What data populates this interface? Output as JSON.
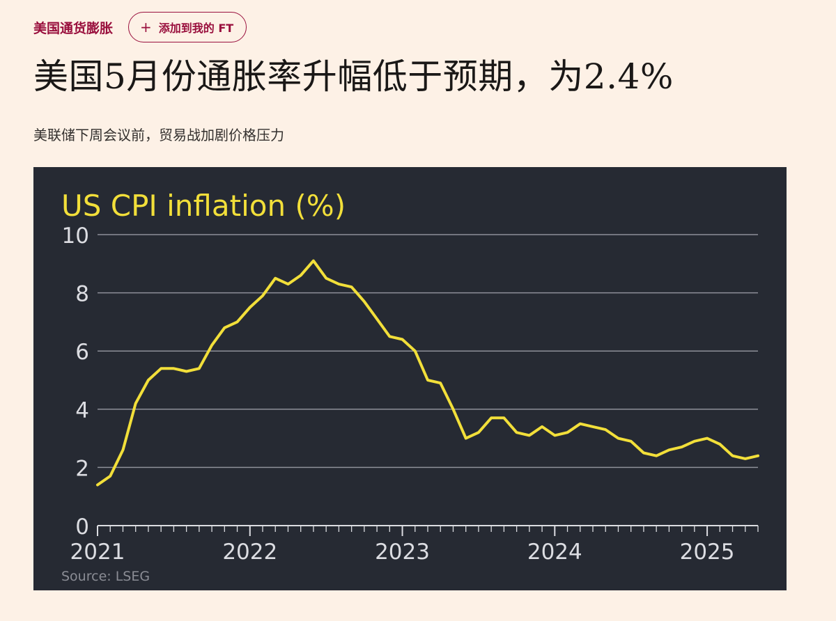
{
  "topic": {
    "label": "美国通货膨胀",
    "follow_label": "添加到我的 FT",
    "follow_icon": "plus-icon"
  },
  "headline": "美国5月份通胀率升幅低于预期，为2.4%",
  "standfirst": "美联储下周会议前，贸易战加剧价格压力",
  "colors": {
    "background": "#fdf1e6",
    "brand": "#990f3d",
    "chart_bg": "#262a33",
    "series": "#f2df3a",
    "gridline": "#8e9099",
    "axis_text": "#dcdde2",
    "source_text": "#8b8d95"
  },
  "chart_data": {
    "type": "line",
    "title": "US CPI inflation (%)",
    "xlabel": "",
    "ylabel": "",
    "xlim": [
      "2021-01",
      "2025-05"
    ],
    "ylim": [
      0,
      10
    ],
    "yticks": [
      0,
      2,
      4,
      6,
      8,
      10
    ],
    "xticks": [
      "2021",
      "2022",
      "2023",
      "2024",
      "2025"
    ],
    "grid": true,
    "source": "Source: LSEG",
    "series": [
      {
        "x": [
          "2021-01",
          "2021-02",
          "2021-03",
          "2021-04",
          "2021-05",
          "2021-06",
          "2021-07",
          "2021-08",
          "2021-09",
          "2021-10",
          "2021-11",
          "2021-12",
          "2022-01",
          "2022-02",
          "2022-03",
          "2022-04",
          "2022-05",
          "2022-06",
          "2022-07",
          "2022-08",
          "2022-09",
          "2022-10",
          "2022-11",
          "2022-12",
          "2023-01",
          "2023-02",
          "2023-03",
          "2023-04",
          "2023-05",
          "2023-06",
          "2023-07",
          "2023-08",
          "2023-09",
          "2023-10",
          "2023-11",
          "2023-12",
          "2024-01",
          "2024-02",
          "2024-03",
          "2024-04",
          "2024-05",
          "2024-06",
          "2024-07",
          "2024-08",
          "2024-09",
          "2024-10",
          "2024-11",
          "2024-12",
          "2025-01",
          "2025-02",
          "2025-03",
          "2025-04",
          "2025-05"
        ],
        "values": [
          1.4,
          1.7,
          2.6,
          4.2,
          5.0,
          5.4,
          5.4,
          5.3,
          5.4,
          6.2,
          6.8,
          7.0,
          7.5,
          7.9,
          8.5,
          8.3,
          8.6,
          9.1,
          8.5,
          8.3,
          8.2,
          7.7,
          7.1,
          6.5,
          6.4,
          6.0,
          5.0,
          4.9,
          4.0,
          3.0,
          3.2,
          3.7,
          3.7,
          3.2,
          3.1,
          3.4,
          3.1,
          3.2,
          3.5,
          3.4,
          3.3,
          3.0,
          2.9,
          2.5,
          2.4,
          2.6,
          2.7,
          2.9,
          3.0,
          2.8,
          2.4,
          2.3,
          2.4
        ]
      }
    ]
  }
}
